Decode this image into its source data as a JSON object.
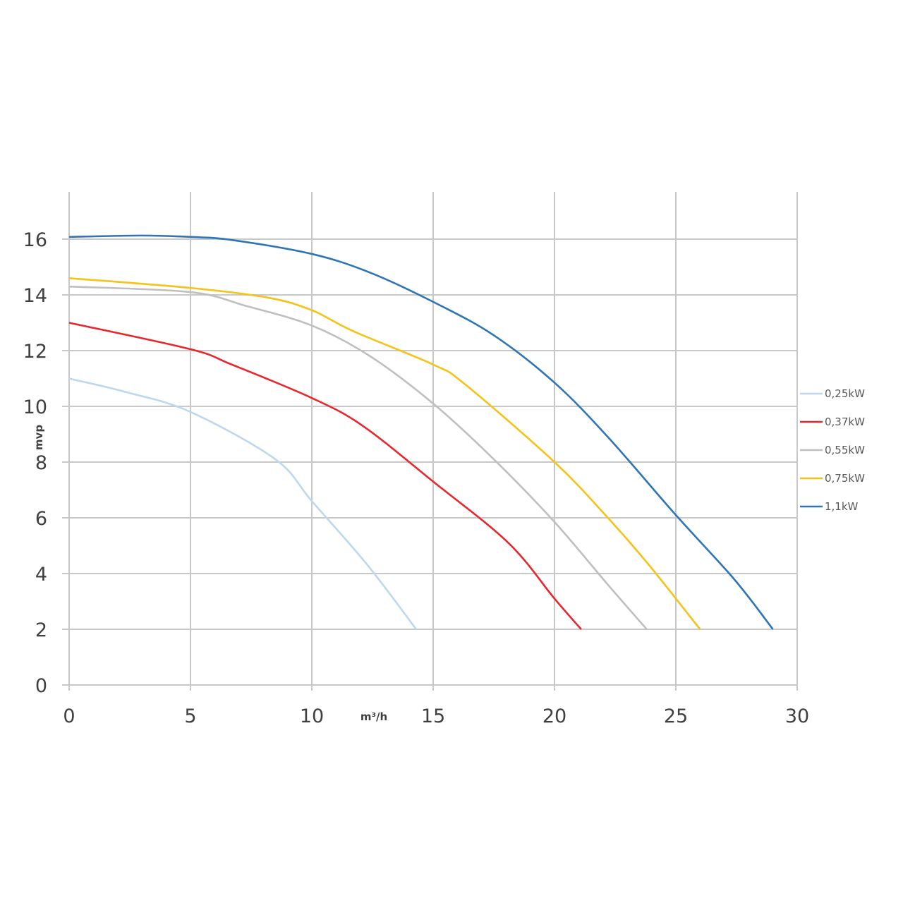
{
  "chart_data": {
    "type": "line",
    "title": "",
    "xlabel": "m³/h",
    "ylabel": "mvp",
    "xlim": [
      0,
      30
    ],
    "ylim": [
      0,
      17.7
    ],
    "xticks": [
      0,
      5,
      10,
      15,
      20,
      25,
      30
    ],
    "yticks": [
      0,
      2,
      4,
      6,
      8,
      10,
      12,
      14,
      16
    ],
    "grid": true,
    "legend_position": "right",
    "series": [
      {
        "name": "0,25kW",
        "color": "#bdd7ee",
        "x": [
          0,
          2.4,
          5,
          8.5,
          10,
          12.3,
          14.3
        ],
        "y": [
          11.0,
          10.5,
          9.8,
          8.1,
          6.6,
          4.3,
          2.0
        ]
      },
      {
        "name": "0,37kW",
        "color": "#e8262b",
        "x": [
          0,
          5,
          6.7,
          10,
          12.1,
          15,
          18.1,
          20,
          21.1
        ],
        "y": [
          13.0,
          12.05,
          11.5,
          10.3,
          9.3,
          7.3,
          5.1,
          3.1,
          2.0
        ]
      },
      {
        "name": "0,55kW",
        "color": "#bfbfbf",
        "x": [
          0,
          5,
          7.3,
          10,
          12.4,
          15,
          17.5,
          20,
          22.2,
          23.8
        ],
        "y": [
          14.3,
          14.1,
          13.6,
          12.9,
          11.8,
          10.1,
          8.1,
          5.85,
          3.6,
          2.0
        ]
      },
      {
        "name": "0,75kW",
        "color": "#f5c216",
        "x": [
          0,
          5,
          8.2,
          10,
          11.7,
          15,
          16.3,
          20,
          22.2,
          23.9,
          26
        ],
        "y": [
          14.6,
          14.25,
          13.9,
          13.45,
          12.7,
          11.5,
          10.8,
          8.0,
          6.0,
          4.3,
          2.0
        ]
      },
      {
        "name": "1,1kW",
        "color": "#2e75b6",
        "x": [
          0,
          3,
          5,
          6.7,
          10,
          12.4,
          15,
          17.5,
          20,
          22.2,
          25,
          27.4,
          29
        ],
        "y": [
          16.08,
          16.13,
          16.08,
          15.97,
          15.47,
          14.8,
          13.75,
          12.55,
          10.85,
          8.9,
          6.1,
          3.8,
          2.0
        ]
      }
    ]
  }
}
